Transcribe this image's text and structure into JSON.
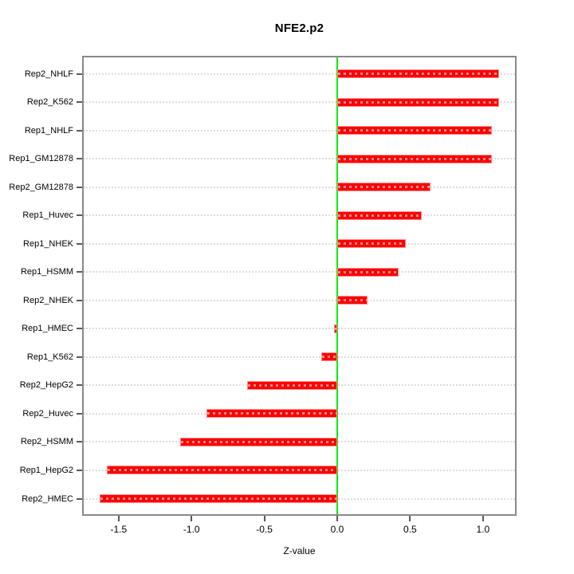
{
  "figure": {
    "title": "NFE2.p2",
    "xlabel": "Z-value"
  },
  "chart_data": {
    "type": "bar",
    "orientation": "horizontal",
    "title": "NFE2.p2",
    "xlabel": "Z-value",
    "ylabel": "",
    "categories": [
      "Rep2_NHLF",
      "Rep2_K562",
      "Rep1_NHLF",
      "Rep1_GM12878",
      "Rep2_GM12878",
      "Rep1_Huvec",
      "Rep1_NHEK",
      "Rep1_HSMM",
      "Rep2_NHEK",
      "Rep1_HMEC",
      "Rep1_K562",
      "Rep2_HepG2",
      "Rep2_Huvec",
      "Rep2_HSMM",
      "Rep1_HepG2",
      "Rep2_HMEC"
    ],
    "values": [
      1.11,
      1.11,
      1.06,
      1.06,
      0.64,
      0.58,
      0.47,
      0.42,
      0.21,
      -0.02,
      -0.11,
      -0.62,
      -0.9,
      -1.08,
      -1.58,
      -1.63
    ],
    "x_ticks": [
      -1.5,
      -1.0,
      -0.5,
      0.0,
      0.5,
      1.0
    ],
    "x_tick_labels": [
      "-1.5",
      "-1.0",
      "-0.5",
      "0.0",
      "0.5",
      "1.0"
    ],
    "xlim": [
      -1.74,
      1.22
    ],
    "zero_line": 0,
    "grid": true,
    "grid_style": "dotted",
    "legend": false,
    "colors": {
      "bar_fill": "#fe0000",
      "bar_edge": "#ff8d8d",
      "zero_line": "#00ee00",
      "gridline": "#dcdcdc",
      "box_border": "#898989",
      "tick": "#5a5a5a",
      "text": "#000000",
      "background": "#ffffff"
    }
  }
}
